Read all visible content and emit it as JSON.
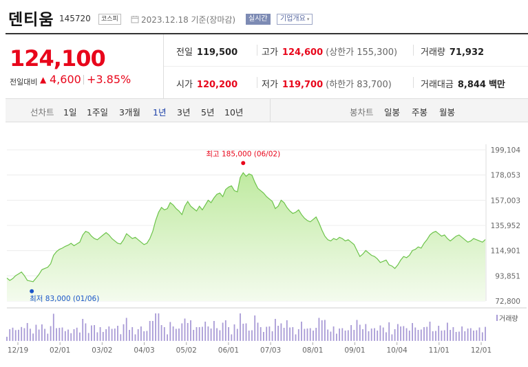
{
  "header": {
    "name": "덴티움",
    "code": "145720",
    "market": "코스피",
    "date": "2023.12.18 기준(장마감)",
    "realtime": "실시간",
    "company_info": "기업개요",
    "caret": "▾"
  },
  "quote": {
    "price": "124,100",
    "change_label": "전일대비",
    "change_arrow": "▲",
    "change_amount": "4,600",
    "change_percent": "+3.85%",
    "prev_close_label": "전일",
    "prev_close": "119,500",
    "high_label": "고가",
    "high": "124,600",
    "upper_limit_label": "(상한가 155,300)",
    "volume_label": "거래량",
    "volume": "71,932",
    "open_label": "시가",
    "open": "120,200",
    "low_label": "저가",
    "low": "119,700",
    "lower_limit_label": "(하한가 83,700)",
    "amount_label": "거래대금",
    "amount": "8,844",
    "amount_unit": "백만"
  },
  "period": {
    "line_label": "선차트",
    "line_items": [
      "1일",
      "1주일",
      "3개월",
      "1년",
      "3년",
      "5년",
      "10년"
    ],
    "active": "1년",
    "candle_label": "봉차트",
    "candle_items": [
      "일봉",
      "주봉",
      "월봉"
    ]
  },
  "colors": {
    "up": "#e8061b",
    "line": "#6cc34a",
    "fill_top": "#bfeaa0",
    "fill_bottom": "#f4fbee",
    "volume_bar": "#a89ad6"
  },
  "chart_data": {
    "type": "area",
    "y_ticks": [
      "199,104",
      "178,053",
      "157,003",
      "135,952",
      "114,901",
      "93,851",
      "72,800"
    ],
    "ylim": [
      72800,
      199104
    ],
    "x_labels": [
      "12/19",
      "02/01",
      "03/02",
      "04/03",
      "05/02",
      "06/01",
      "07/03",
      "08/01",
      "09/01",
      "10/04",
      "11/01",
      "12/01"
    ],
    "max_label": "최고 185,000 (06/02)",
    "min_label": "최저 83,000 (01/06)",
    "volume_legend": "거래량",
    "values": [
      92000,
      90000,
      91500,
      94000,
      95500,
      97000,
      94000,
      90000,
      89500,
      89000,
      92000,
      95000,
      99000,
      100000,
      101000,
      104000,
      111000,
      114000,
      116000,
      117000,
      118500,
      119500,
      121000,
      119000,
      120500,
      122000,
      128000,
      131000,
      130000,
      127000,
      125000,
      124000,
      126000,
      128000,
      130000,
      128000,
      125000,
      123000,
      121000,
      120500,
      124000,
      129000,
      127000,
      125000,
      126000,
      124000,
      122000,
      120000,
      121000,
      125000,
      131000,
      140000,
      147000,
      151000,
      149000,
      150000,
      155000,
      153000,
      150000,
      148000,
      145000,
      152000,
      156000,
      152000,
      150000,
      148000,
      152000,
      149000,
      153000,
      157000,
      155000,
      159000,
      162000,
      163000,
      160000,
      166000,
      168000,
      169000,
      165000,
      164000,
      176000,
      180000,
      177000,
      179000,
      178000,
      172000,
      167000,
      165000,
      163000,
      160000,
      158000,
      156000,
      150000,
      152000,
      157000,
      155000,
      151000,
      148000,
      146000,
      147000,
      149000,
      145000,
      142000,
      140000,
      139000,
      141000,
      143000,
      138000,
      132000,
      127000,
      124000,
      123000,
      125000,
      124000,
      126000,
      125000,
      123000,
      124000,
      122000,
      120000,
      115000,
      110000,
      112000,
      115000,
      113000,
      111000,
      110000,
      108000,
      105000,
      106000,
      107000,
      103000,
      102000,
      100000,
      103000,
      107000,
      110000,
      109000,
      111000,
      115000,
      116000,
      118000,
      117000,
      121000,
      124000,
      128000,
      130000,
      131000,
      129000,
      127000,
      128000,
      125000,
      123000,
      125000,
      127000,
      128000,
      126000,
      124000,
      122000,
      123000,
      125000,
      124000,
      123000,
      122000,
      124100
    ]
  }
}
